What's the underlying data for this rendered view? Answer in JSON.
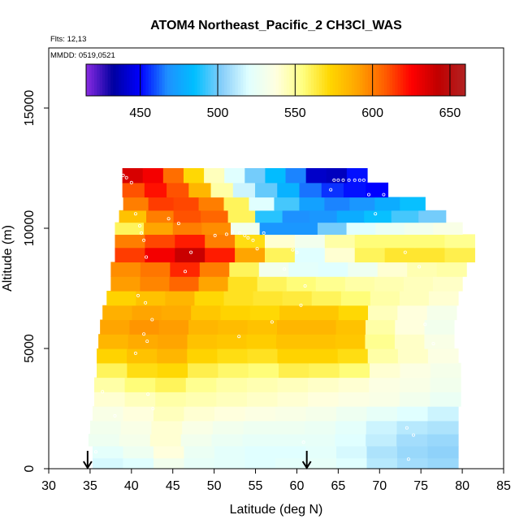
{
  "chart_data": {
    "type": "heatmap",
    "title": "ATOM4 Northeast_Pacific_2 CH3Cl_WAS",
    "flights_label": "Flts: 12,13",
    "mmdd_label": "MMDD: 0519,0521",
    "xlabel": "Latitude (deg N)",
    "ylabel": "Altitude (m)",
    "xlim": [
      30,
      85
    ],
    "ylim": [
      0,
      17500
    ],
    "x_ticks": [
      30,
      35,
      40,
      45,
      50,
      55,
      60,
      65,
      70,
      75,
      80,
      85
    ],
    "x_tick_labels": [
      "30",
      "35",
      "40",
      "45",
      "50",
      "55",
      "60",
      "65",
      "70",
      "75",
      "80",
      "85"
    ],
    "y_ticks": [
      0,
      5000,
      10000,
      15000
    ],
    "y_tick_labels": [
      "0",
      "5000",
      "10000",
      "15000"
    ],
    "colorbar": {
      "range": [
        415,
        660
      ],
      "ticks": [
        450,
        500,
        550,
        600,
        650
      ],
      "tick_labels": [
        "450",
        "500",
        "550",
        "600",
        "650"
      ],
      "colors": [
        "#8a2be2",
        "#0000a0",
        "#0000ff",
        "#1e90ff",
        "#00bfff",
        "#87cefa",
        "#e0ffff",
        "#ffffe0",
        "#ffff80",
        "#ffd700",
        "#ffa500",
        "#ff6000",
        "#ff0000",
        "#c00000",
        "#b22222"
      ]
    },
    "layers": [
      {
        "alt": 200,
        "lat0": 35.3,
        "lat1": 79.5,
        "values": [
          518,
          520,
          530,
          524,
          522,
          520,
          522,
          524,
          520,
          512,
          508,
          506
        ]
      },
      {
        "alt": 700,
        "lat0": 35.3,
        "lat1": 79.5,
        "values": [
          522,
          528,
          538,
          526,
          522,
          520,
          520,
          522,
          518,
          510,
          506,
          504
        ]
      },
      {
        "alt": 1200,
        "lat0": 34.8,
        "lat1": 79.5,
        "values": [
          528,
          532,
          540,
          530,
          526,
          524,
          524,
          524,
          520,
          514,
          508,
          506
        ]
      },
      {
        "alt": 1700,
        "lat0": 35.0,
        "lat1": 79.5,
        "values": [
          530,
          534,
          540,
          534,
          530,
          528,
          528,
          526,
          522,
          516,
          512,
          510
        ]
      },
      {
        "alt": 2300,
        "lat0": 35.3,
        "lat1": 79.5,
        "values": [
          534,
          538,
          544,
          540,
          538,
          536,
          534,
          532,
          528,
          524,
          520,
          516
        ]
      },
      {
        "alt": 2900,
        "lat0": 35.5,
        "lat1": 79.8,
        "values": [
          540,
          544,
          548,
          546,
          544,
          542,
          540,
          538,
          536,
          534,
          530,
          526
        ]
      },
      {
        "alt": 3500,
        "lat0": 35.5,
        "lat1": 79.8,
        "values": [
          548,
          556,
          560,
          552,
          548,
          546,
          544,
          542,
          540,
          536,
          534,
          530
        ]
      },
      {
        "alt": 4100,
        "lat0": 35.8,
        "lat1": 79.8,
        "values": [
          560,
          570,
          572,
          562,
          558,
          556,
          562,
          560,
          556,
          540,
          536,
          532
        ]
      },
      {
        "alt": 4700,
        "lat0": 35.8,
        "lat1": 79.5,
        "values": [
          574,
          580,
          584,
          574,
          570,
          568,
          574,
          574,
          570,
          548,
          542,
          536
        ]
      },
      {
        "alt": 5300,
        "lat0": 36.0,
        "lat1": 79.0,
        "values": [
          584,
          588,
          590,
          580,
          578,
          576,
          580,
          580,
          578,
          552,
          542,
          534
        ]
      },
      {
        "alt": 5900,
        "lat0": 36.2,
        "lat1": 79.0,
        "values": [
          590,
          594,
          592,
          584,
          582,
          580,
          584,
          584,
          580,
          548,
          538,
          530
        ]
      },
      {
        "alt": 6500,
        "lat0": 36.5,
        "lat1": 79.3,
        "values": [
          586,
          590,
          588,
          578,
          574,
          572,
          578,
          578,
          572,
          544,
          538,
          532
        ]
      },
      {
        "alt": 7100,
        "lat0": 37.0,
        "lat1": 79.5,
        "values": [
          574,
          580,
          584,
          572,
          568,
          566,
          564,
          560,
          556,
          548,
          544,
          540
        ]
      },
      {
        "alt": 7700,
        "lat0": 37.5,
        "lat1": 80.0,
        "values": [
          592,
          598,
          606,
          590,
          568,
          560,
          556,
          552,
          548,
          546,
          544,
          542
        ]
      },
      {
        "alt": 8300,
        "lat0": 37.5,
        "lat1": 80.5,
        "values": [
          596,
          602,
          618,
          600,
          560,
          530,
          522,
          520,
          528,
          540,
          546,
          548
        ]
      },
      {
        "alt": 8900,
        "lat0": 38.0,
        "lat1": 81.5,
        "values": [
          614,
          628,
          640,
          620,
          590,
          560,
          520,
          540,
          560,
          566,
          566,
          562
        ]
      },
      {
        "alt": 9500,
        "lat0": 38.0,
        "lat1": 81.5,
        "values": [
          600,
          612,
          620,
          600,
          570,
          540,
          530,
          548,
          556,
          556,
          556,
          552
        ]
      },
      {
        "alt": 10000,
        "lat0": 38.0,
        "lat1": 80.0,
        "values": [
          560,
          590,
          600,
          596,
          530,
          470,
          470,
          500,
          520,
          526,
          530,
          534
        ]
      },
      {
        "alt": 10500,
        "lat0": 38.5,
        "lat1": 78.0,
        "values": [
          580,
          600,
          610,
          606,
          560,
          490,
          468,
          470,
          478,
          486,
          494,
          500
        ]
      },
      {
        "alt": 11000,
        "lat0": 39.0,
        "lat1": 75.5,
        "values": [
          600,
          614,
          612,
          600,
          560,
          520,
          494,
          474,
          466,
          470,
          478,
          486
        ]
      },
      {
        "alt": 11600,
        "lat0": 38.9,
        "lat1": 71.0,
        "values": [
          610,
          622,
          610,
          584,
          548,
          516,
          498,
          480,
          464,
          456,
          452,
          450
        ]
      },
      {
        "alt": 12200,
        "lat0": 38.9,
        "lat1": 68.5,
        "values": [
          636,
          628,
          604,
          572,
          544,
          520,
          500,
          484,
          466,
          440,
          438,
          452
        ]
      }
    ],
    "sample_points": [
      [
        39.0,
        12200
      ],
      [
        39.4,
        12100
      ],
      [
        40.0,
        11900
      ],
      [
        40.5,
        10600
      ],
      [
        41.0,
        10100
      ],
      [
        41.2,
        9800
      ],
      [
        41.5,
        9500
      ],
      [
        41.8,
        8800
      ],
      [
        40.8,
        7200
      ],
      [
        41.7,
        6900
      ],
      [
        41.5,
        5600
      ],
      [
        41.9,
        5300
      ],
      [
        42.5,
        6200
      ],
      [
        40.5,
        4800
      ],
      [
        44.5,
        10400
      ],
      [
        45.7,
        10200
      ],
      [
        46.5,
        8200
      ],
      [
        47.2,
        9000
      ],
      [
        50.1,
        9700
      ],
      [
        51.5,
        9750
      ],
      [
        52.2,
        9850
      ],
      [
        53.1,
        9800
      ],
      [
        53.7,
        9700
      ],
      [
        54.1,
        9600
      ],
      [
        54.7,
        9500
      ],
      [
        55.2,
        9150
      ],
      [
        56.0,
        9800
      ],
      [
        57.0,
        6100
      ],
      [
        58.5,
        8300
      ],
      [
        59.5,
        9100
      ],
      [
        60.0,
        9000
      ],
      [
        60.5,
        6800
      ],
      [
        61.0,
        7600
      ],
      [
        64.1,
        11600
      ],
      [
        64.5,
        12000
      ],
      [
        65.0,
        12000
      ],
      [
        65.6,
        12000
      ],
      [
        66.3,
        12000
      ],
      [
        67.0,
        12000
      ],
      [
        67.6,
        12000
      ],
      [
        68.1,
        12000
      ],
      [
        68.7,
        11400
      ],
      [
        69.5,
        10600
      ],
      [
        70.5,
        11400
      ],
      [
        73.1,
        9000
      ],
      [
        74.8,
        8400
      ],
      [
        75.5,
        6000
      ],
      [
        76.5,
        5200
      ],
      [
        73.3,
        1700
      ],
      [
        74.1,
        1400
      ],
      [
        73.5,
        400
      ],
      [
        35.7,
        700
      ],
      [
        38.0,
        2200
      ],
      [
        36.5,
        3200
      ],
      [
        42.0,
        3100
      ],
      [
        42.6,
        2500
      ],
      [
        53.0,
        5500
      ],
      [
        60.8,
        1100
      ]
    ],
    "arrows": [
      {
        "lat": 34.7
      },
      {
        "lat": 61.2
      }
    ]
  }
}
